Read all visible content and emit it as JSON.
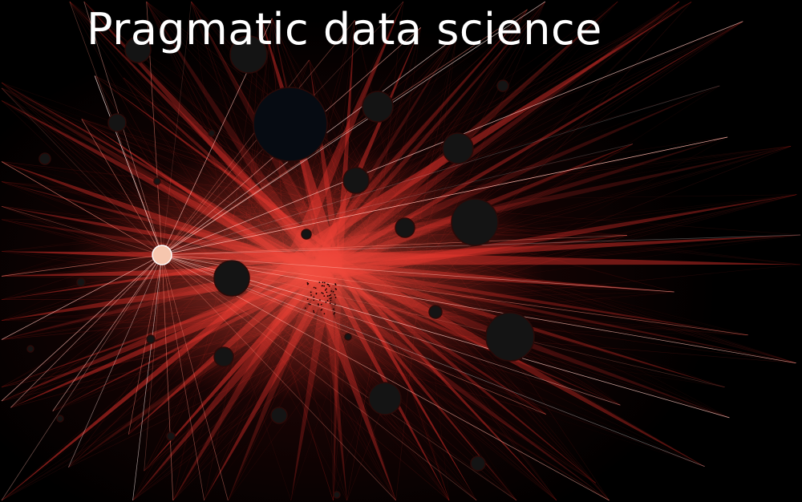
{
  "title": "Pragmatic data science",
  "colors": {
    "background": "#000000",
    "edge": "#e0302a",
    "edge_bright": "#ff8a78",
    "hub_fill": "#f6c6ae",
    "node_fill": "#141414",
    "title_text": "#ffffff"
  }
}
